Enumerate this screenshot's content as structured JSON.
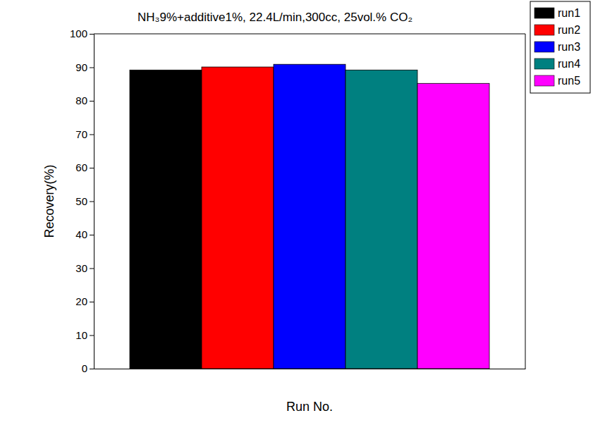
{
  "chart_data": {
    "type": "bar",
    "title": "NH₃9%+additive1%, 22.4L/min,300cc, 25vol.% CO₂",
    "x_label": "Run No.",
    "y_label": "Recovery(%)",
    "categories": [
      null
    ],
    "series": [
      {
        "name": "run1",
        "color": "#000000",
        "values": [
          89.2
        ]
      },
      {
        "name": "run2",
        "color": "#ff0000",
        "values": [
          90.1
        ]
      },
      {
        "name": "run3",
        "color": "#0000ff",
        "values": [
          90.9
        ]
      },
      {
        "name": "run4",
        "color": "#008080",
        "values": [
          89.2
        ]
      },
      {
        "name": "run5",
        "color": "#ff00ff",
        "values": [
          85.2
        ]
      }
    ],
    "ylim": [
      0,
      100
    ],
    "yticks": [
      0,
      10,
      20,
      30,
      40,
      50,
      60,
      70,
      80,
      90,
      100
    ],
    "legend": "upper right",
    "tick_labels": "y",
    "grid": false
  }
}
